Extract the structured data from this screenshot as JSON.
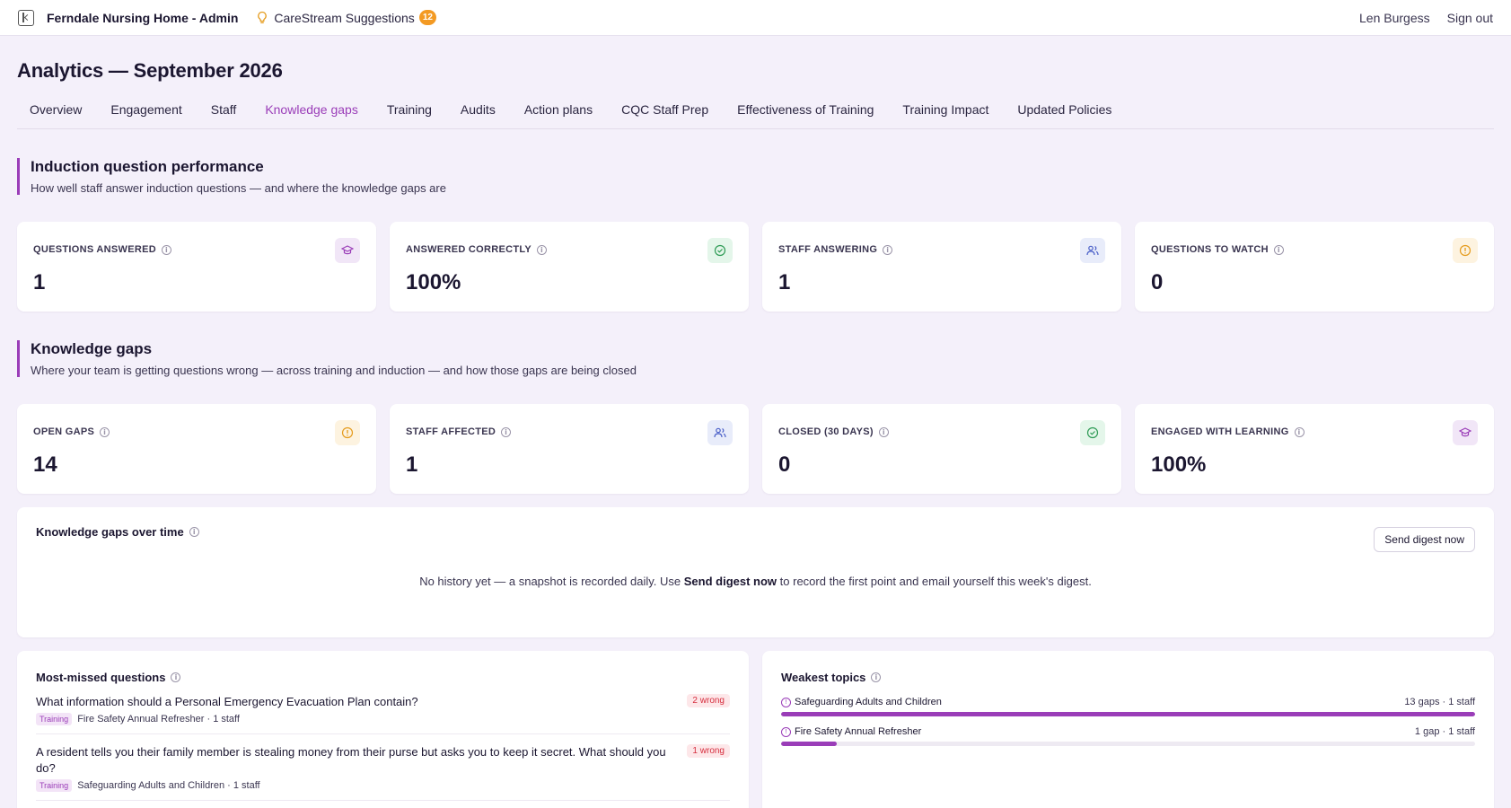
{
  "app": {
    "title": "Ferndale Nursing Home - Admin",
    "suggestions_label": "CareStream Suggestions",
    "suggestions_count": "12",
    "user_name": "Len Burgess",
    "signout_label": "Sign out"
  },
  "page": {
    "title": "Analytics — September 2026"
  },
  "tabs": [
    {
      "label": "Overview"
    },
    {
      "label": "Engagement"
    },
    {
      "label": "Staff"
    },
    {
      "label": "Knowledge gaps",
      "active": true
    },
    {
      "label": "Training"
    },
    {
      "label": "Audits"
    },
    {
      "label": "Action plans"
    },
    {
      "label": "CQC Staff Prep"
    },
    {
      "label": "Effectiveness of Training"
    },
    {
      "label": "Training Impact"
    },
    {
      "label": "Updated Policies"
    }
  ],
  "induction": {
    "title": "Induction question performance",
    "subtitle": "How well staff answer induction questions — and where the knowledge gaps are",
    "cards": [
      {
        "label": "QUESTIONS ANSWERED",
        "value": "1",
        "icon": "graduation-cap-icon",
        "color": "purple"
      },
      {
        "label": "ANSWERED CORRECTLY",
        "value": "100%",
        "icon": "check-circle-icon",
        "color": "green"
      },
      {
        "label": "STAFF ANSWERING",
        "value": "1",
        "icon": "users-icon",
        "color": "blue"
      },
      {
        "label": "QUESTIONS TO WATCH",
        "value": "0",
        "icon": "alert-circle-icon",
        "color": "amber"
      }
    ]
  },
  "gaps": {
    "title": "Knowledge gaps",
    "subtitle": "Where your team is getting questions wrong — across training and induction — and how those gaps are being closed",
    "cards": [
      {
        "label": "OPEN GAPS",
        "value": "14",
        "icon": "alert-circle-icon",
        "color": "amber"
      },
      {
        "label": "STAFF AFFECTED",
        "value": "1",
        "icon": "users-icon",
        "color": "blue"
      },
      {
        "label": "CLOSED (30 DAYS)",
        "value": "0",
        "icon": "check-circle-icon",
        "color": "green"
      },
      {
        "label": "ENGAGED WITH LEARNING",
        "value": "100%",
        "icon": "graduation-cap-icon",
        "color": "purple"
      }
    ]
  },
  "over_time": {
    "title": "Knowledge gaps over time",
    "button_label": "Send digest now",
    "empty_before": "No history yet — a snapshot is recorded daily. Use ",
    "empty_bold": "Send digest now",
    "empty_after": " to record the first point and email yourself this week's digest."
  },
  "most_missed": {
    "title": "Most-missed questions",
    "items": [
      {
        "question": "What information should a Personal Emergency Evacuation Plan contain?",
        "tag": "Training",
        "meta": "Fire Safety Annual Refresher · 1 staff",
        "wrong": "2 wrong"
      },
      {
        "question": "A resident tells you their family member is stealing money from their purse but asks you to keep it secret. What should you do?",
        "tag": "Training",
        "meta": "Safeguarding Adults and Children · 1 staff",
        "wrong": "1 wrong"
      }
    ]
  },
  "weakest": {
    "title": "Weakest topics",
    "topics": [
      {
        "name": "Safeguarding Adults and Children",
        "stat": "13 gaps · 1 staff",
        "fraction": 1.0
      },
      {
        "name": "Fire Safety Annual Refresher",
        "stat": "1 gap · 1 staff",
        "fraction": 0.08
      }
    ]
  },
  "colors": {
    "accent": "#9a3db8",
    "background": "#f4f0fa",
    "badge": "#f39a23",
    "wrong": "#d62e3e"
  }
}
